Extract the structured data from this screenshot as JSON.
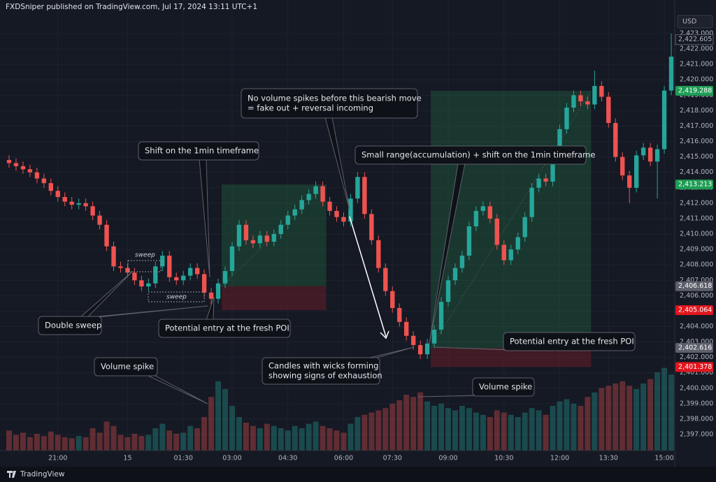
{
  "header": "FXDSniper published on TradingView.com, Jul 17, 2024 13:11 UTC+1",
  "currency": "USD",
  "footer": "TradingView",
  "chart_data": {
    "type": "candlestick",
    "up_color": "#26a69a",
    "down_color": "#ef5350",
    "categories": [
      null,
      null,
      null,
      null,
      null,
      null,
      null,
      "21:00",
      null,
      null,
      null,
      null,
      null,
      null,
      null,
      null,
      null,
      "15",
      null,
      null,
      null,
      null,
      null,
      null,
      null,
      "01:30",
      null,
      null,
      null,
      null,
      null,
      null,
      "03:00",
      null,
      null,
      null,
      null,
      null,
      null,
      null,
      "04:30",
      null,
      null,
      null,
      null,
      null,
      null,
      null,
      "06:00",
      null,
      null,
      null,
      null,
      null,
      null,
      "07:30",
      null,
      null,
      null,
      null,
      null,
      null,
      null,
      "09:00",
      null,
      null,
      null,
      null,
      null,
      null,
      null,
      "10:30",
      null,
      null,
      null,
      null,
      null,
      null,
      null,
      "12:00",
      null,
      null,
      null,
      null,
      null,
      null,
      "13:30",
      null,
      null,
      null,
      null,
      null,
      null,
      null,
      "15:00",
      null
    ],
    "open": [
      2414.8,
      2414.6,
      2414.4,
      2414.2,
      2414.0,
      2413.6,
      2413.3,
      2412.8,
      2412.4,
      2412.1,
      2411.9,
      2412.0,
      2411.8,
      2411.2,
      2410.6,
      2409.2,
      2407.9,
      2407.8,
      2407.5,
      2407.0,
      2406.6,
      2406.8,
      2407.9,
      2408.6,
      2407.2,
      2407.0,
      2407.3,
      2407.8,
      2407.4,
      2406.2,
      2405.8,
      2406.8,
      2407.6,
      2409.2,
      2410.6,
      2409.6,
      2409.4,
      2409.9,
      2409.5,
      2410.0,
      2410.6,
      2411.2,
      2411.6,
      2412.2,
      2412.6,
      2413.1,
      2412.1,
      2411.5,
      2411.1,
      2410.8,
      2412.3,
      2413.7,
      2411.3,
      2409.6,
      2407.8,
      2406.3,
      2405.2,
      2404.3,
      2403.4,
      2402.8,
      2402.2,
      2402.9,
      2403.8,
      2405.6,
      2407.0,
      2407.8,
      2408.6,
      2410.5,
      2411.5,
      2411.8,
      2411.0,
      2409.3,
      2408.3,
      2409.0,
      2409.8,
      2411.1,
      2413.0,
      2413.6,
      2413.4,
      2415.2,
      2416.8,
      2418.2,
      2419.0,
      2418.6,
      2418.4,
      2419.6,
      2418.9,
      2417.2,
      2415.0,
      2413.8,
      2413.0,
      2415.1,
      2415.6,
      2414.7,
      2415.5,
      2419.3
    ],
    "high": [
      2415.1,
      2414.9,
      2414.7,
      2414.5,
      2414.3,
      2413.9,
      2413.6,
      2413.1,
      2412.7,
      2412.4,
      2412.3,
      2412.3,
      2412.1,
      2411.5,
      2410.9,
      2409.5,
      2408.2,
      2408.1,
      2407.8,
      2407.3,
      2407.1,
      2408.2,
      2408.9,
      2408.9,
      2407.5,
      2407.6,
      2408.1,
      2408.1,
      2407.7,
      2406.5,
      2407.1,
      2407.9,
      2409.5,
      2410.9,
      2410.9,
      2409.9,
      2410.2,
      2410.2,
      2410.3,
      2410.9,
      2411.5,
      2411.9,
      2412.5,
      2412.9,
      2413.4,
      2413.4,
      2412.4,
      2411.8,
      2411.4,
      2412.6,
      2414.0,
      2414.0,
      2411.6,
      2409.9,
      2408.1,
      2406.6,
      2405.5,
      2404.6,
      2403.7,
      2403.1,
      2403.2,
      2404.1,
      2405.9,
      2407.3,
      2408.1,
      2408.9,
      2410.8,
      2411.8,
      2412.1,
      2412.1,
      2411.3,
      2409.6,
      2409.3,
      2410.1,
      2411.4,
      2413.3,
      2413.9,
      2413.9,
      2415.5,
      2417.1,
      2418.5,
      2419.3,
      2419.3,
      2418.9,
      2420.6,
      2419.9,
      2419.2,
      2417.5,
      2415.3,
      2414.1,
      2415.4,
      2415.9,
      2415.9,
      2415.8,
      2419.6,
      2423.0
    ],
    "low": [
      2414.3,
      2414.1,
      2413.9,
      2413.7,
      2413.3,
      2413.0,
      2412.5,
      2412.1,
      2411.8,
      2411.6,
      2411.6,
      2411.5,
      2410.9,
      2410.3,
      2408.9,
      2407.6,
      2407.5,
      2407.2,
      2406.7,
      2406.3,
      2406.3,
      2406.5,
      2407.6,
      2406.9,
      2406.7,
      2406.7,
      2407.0,
      2407.1,
      2405.9,
      2405.3,
      2405.5,
      2406.5,
      2407.3,
      2408.9,
      2409.3,
      2409.1,
      2409.1,
      2409.2,
      2409.2,
      2409.7,
      2410.3,
      2410.9,
      2411.3,
      2411.9,
      2412.3,
      2411.8,
      2411.2,
      2410.8,
      2410.5,
      2410.5,
      2412.0,
      2411.0,
      2409.3,
      2407.5,
      2406.0,
      2404.9,
      2404.0,
      2403.1,
      2402.5,
      2401.9,
      2401.9,
      2402.6,
      2403.5,
      2405.3,
      2406.7,
      2407.5,
      2408.3,
      2410.2,
      2411.2,
      2410.7,
      2409.0,
      2408.0,
      2408.0,
      2408.7,
      2409.5,
      2410.8,
      2412.7,
      2413.1,
      2413.1,
      2414.9,
      2416.5,
      2417.9,
      2418.3,
      2418.1,
      2418.1,
      2418.6,
      2416.9,
      2414.7,
      2413.5,
      2412.0,
      2412.7,
      2414.8,
      2414.4,
      2412.3,
      2415.2,
      2419.0
    ],
    "close": [
      2414.6,
      2414.4,
      2414.2,
      2414.0,
      2413.6,
      2413.3,
      2412.8,
      2412.4,
      2412.1,
      2411.9,
      2412.0,
      2411.8,
      2411.2,
      2410.6,
      2409.2,
      2407.9,
      2407.8,
      2407.5,
      2407.0,
      2406.6,
      2406.8,
      2407.9,
      2408.6,
      2407.2,
      2407.0,
      2407.3,
      2407.8,
      2407.4,
      2406.2,
      2405.8,
      2406.8,
      2407.6,
      2409.2,
      2410.6,
      2409.6,
      2409.4,
      2409.9,
      2409.5,
      2410.0,
      2410.6,
      2411.2,
      2411.6,
      2412.2,
      2412.6,
      2413.1,
      2412.1,
      2411.5,
      2411.1,
      2410.8,
      2412.3,
      2413.7,
      2411.3,
      2409.6,
      2407.8,
      2406.3,
      2405.2,
      2404.3,
      2403.4,
      2402.8,
      2402.2,
      2402.9,
      2403.8,
      2405.6,
      2407.0,
      2407.8,
      2408.6,
      2410.5,
      2411.5,
      2411.8,
      2411.0,
      2409.3,
      2408.3,
      2409.0,
      2409.8,
      2411.1,
      2413.0,
      2413.6,
      2413.4,
      2415.2,
      2416.8,
      2418.2,
      2419.0,
      2418.6,
      2418.4,
      2419.6,
      2418.9,
      2417.2,
      2415.0,
      2413.8,
      2413.0,
      2415.1,
      2415.6,
      2414.7,
      2415.5,
      2419.3,
      2421.5
    ],
    "volume": [
      18,
      14,
      16,
      12,
      15,
      13,
      17,
      14,
      12,
      11,
      13,
      12,
      20,
      16,
      26,
      22,
      14,
      12,
      15,
      13,
      14,
      20,
      24,
      18,
      15,
      16,
      22,
      20,
      30,
      48,
      62,
      55,
      40,
      30,
      25,
      22,
      20,
      24,
      22,
      20,
      18,
      22,
      20,
      24,
      26,
      22,
      20,
      18,
      16,
      24,
      30,
      32,
      34,
      36,
      38,
      42,
      45,
      50,
      48,
      52,
      44,
      40,
      42,
      38,
      36,
      40,
      38,
      34,
      32,
      30,
      36,
      34,
      32,
      30,
      34,
      38,
      36,
      32,
      40,
      44,
      46,
      42,
      40,
      48,
      52,
      56,
      58,
      60,
      62,
      58,
      55,
      60,
      64,
      70,
      74,
      68
    ],
    "ylim": [
      2395.96,
      2424.54
    ],
    "y2lim": [
      0,
      100
    ],
    "yticks": [
      {
        "value": 2397,
        "label": "2,397.000"
      },
      {
        "value": 2398,
        "label": "2,398.000"
      },
      {
        "value": 2399,
        "label": "2,399.000"
      },
      {
        "value": 2400,
        "label": "2,400.000"
      },
      {
        "value": 2401,
        "label": "2,401.000"
      },
      {
        "value": 2402,
        "label": "2,402.000"
      },
      {
        "value": 2403,
        "label": "2,403.000"
      },
      {
        "value": 2404,
        "label": "2,404.000"
      },
      {
        "value": 2405,
        "label": "2,405.000"
      },
      {
        "value": 2406,
        "label": "2,406.000"
      },
      {
        "value": 2407,
        "label": "2,407.000"
      },
      {
        "value": 2408,
        "label": "2,408.000"
      },
      {
        "value": 2409,
        "label": "2,409.000"
      },
      {
        "value": 2410,
        "label": "2,410.000"
      },
      {
        "value": 2411,
        "label": "2,411.000"
      },
      {
        "value": 2412,
        "label": "2,412.000"
      },
      {
        "value": 2413,
        "label": "2,413.000"
      },
      {
        "value": 2414,
        "label": "2,414.000"
      },
      {
        "value": 2415,
        "label": "2,415.000"
      },
      {
        "value": 2416,
        "label": "2,416.000"
      },
      {
        "value": 2417,
        "label": "2,417.000"
      },
      {
        "value": 2418,
        "label": "2,418.000"
      },
      {
        "value": 2419,
        "label": "2,419.000"
      },
      {
        "value": 2420,
        "label": "2,420.000"
      },
      {
        "value": 2421,
        "label": "2,421.000"
      },
      {
        "value": 2422,
        "label": "2,422.000"
      },
      {
        "value": 2423,
        "label": "2,423.000"
      }
    ],
    "grid": true,
    "last_price": {
      "value": 2422.605,
      "label": "2,422.605"
    },
    "positions": [
      {
        "start": 31,
        "end": 45,
        "target": {
          "value": 2413.213,
          "label": "2,413.213"
        },
        "entry": {
          "value": 2406.618,
          "label": "2,406.618"
        },
        "stop": {
          "value": 2405.064,
          "label": "2,405.064"
        }
      },
      {
        "start": 61,
        "end": 83,
        "target": {
          "value": 2419.288,
          "label": "2,419.288"
        },
        "entry": {
          "value": 2402.616,
          "label": "2,402.616"
        },
        "stop": {
          "value": 2401.378,
          "label": "2,401.378"
        }
      }
    ],
    "annotations": [
      [
        "Shift on the 1min timeframe"
      ],
      [
        "No volume spikes before this bearish move",
        "= fake out + reversal incoming"
      ],
      [
        "Small range(accumulation) + shift on the 1min timeframe"
      ],
      [
        "Double sweep"
      ],
      [
        "Potential entry at the fresh POI"
      ],
      [
        "Candles with wicks forming",
        "showing signs of exhaustion"
      ],
      [
        "Potential entry at the fresh POI"
      ],
      [
        "Volume spike"
      ],
      [
        "Volume spike"
      ]
    ],
    "sweeps": [
      "sweep",
      "sweep"
    ]
  }
}
